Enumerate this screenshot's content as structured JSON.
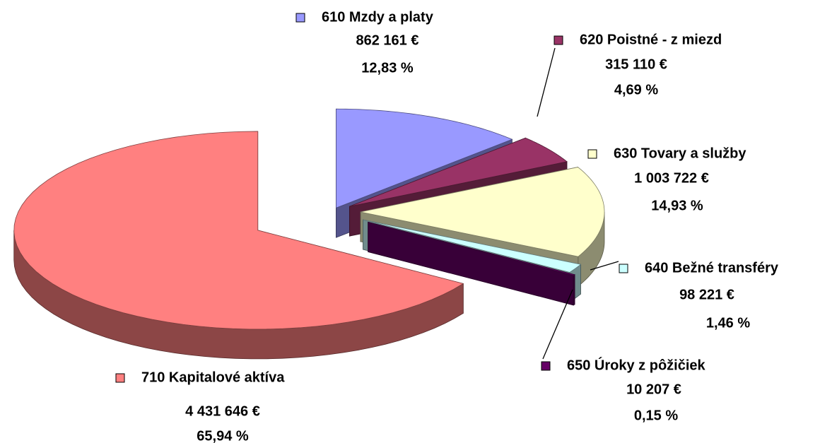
{
  "chart_data": {
    "type": "pie",
    "categories": [
      "610 Mzdy a platy",
      "620 Poistné - z miezd",
      "630 Tovary a služby",
      "640 Bežné transféry",
      "650 Úroky z pôžičiek",
      "710 Kapitalové aktíva"
    ],
    "values": [
      862161,
      315110,
      1003722,
      98221,
      10207,
      4431646
    ],
    "value_labels": [
      "862 161 €",
      "315 110 €",
      "1 003 722 €",
      "98 221 €",
      "10 207 €",
      "4 431 646 €"
    ],
    "percents": [
      12.83,
      4.69,
      14.93,
      1.46,
      0.15,
      65.94
    ],
    "percent_labels": [
      "12,83 %",
      "4,69 %",
      "14,93 %",
      "1,46 %",
      "0,15 %",
      "65,94 %"
    ],
    "colors": [
      "#9999ff",
      "#993366",
      "#ffffcc",
      "#ccffff",
      "#660066",
      "#ff8080"
    ]
  }
}
